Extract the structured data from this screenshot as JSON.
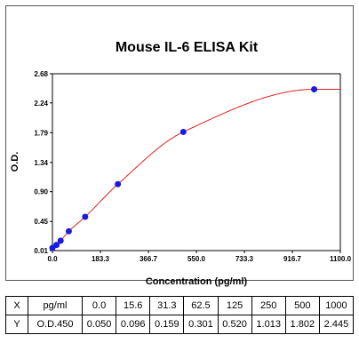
{
  "chart_data": {
    "type": "scatter",
    "title": "Mouse IL-6 ELISA Kit",
    "xlabel": "Concentration (pg/ml)",
    "ylabel": "O.D.",
    "xlim": [
      0,
      1100
    ],
    "ylim": [
      0.01,
      2.68
    ],
    "x_ticks": [
      "0.0",
      "183.3",
      "366.7",
      "550.0",
      "733.3",
      "916.7",
      "1100.0"
    ],
    "y_ticks": [
      "0.01",
      "0.45",
      "0.90",
      "1.34",
      "1.79",
      "2.24",
      "2.68"
    ],
    "series": [
      {
        "x": [
          0,
          15.6,
          31.3,
          62.5,
          125,
          250,
          500,
          1000
        ],
        "y": [
          0.05,
          0.096,
          0.159,
          0.301,
          0.52,
          1.013,
          1.802,
          2.445
        ],
        "marker_color": "#1a1adf",
        "line_color": "#e02020"
      }
    ],
    "grid": false,
    "legend": "none"
  },
  "table": {
    "rows": [
      {
        "label": "X",
        "unit": "pg/ml",
        "values": [
          "0.0",
          "15.6",
          "31.3",
          "62.5",
          "125",
          "250",
          "500",
          "1000"
        ]
      },
      {
        "label": "Y",
        "unit": "O.D.450",
        "values": [
          "0.050",
          "0.096",
          "0.159",
          "0.301",
          "0.520",
          "1.013",
          "1.802",
          "2.445"
        ]
      }
    ]
  }
}
